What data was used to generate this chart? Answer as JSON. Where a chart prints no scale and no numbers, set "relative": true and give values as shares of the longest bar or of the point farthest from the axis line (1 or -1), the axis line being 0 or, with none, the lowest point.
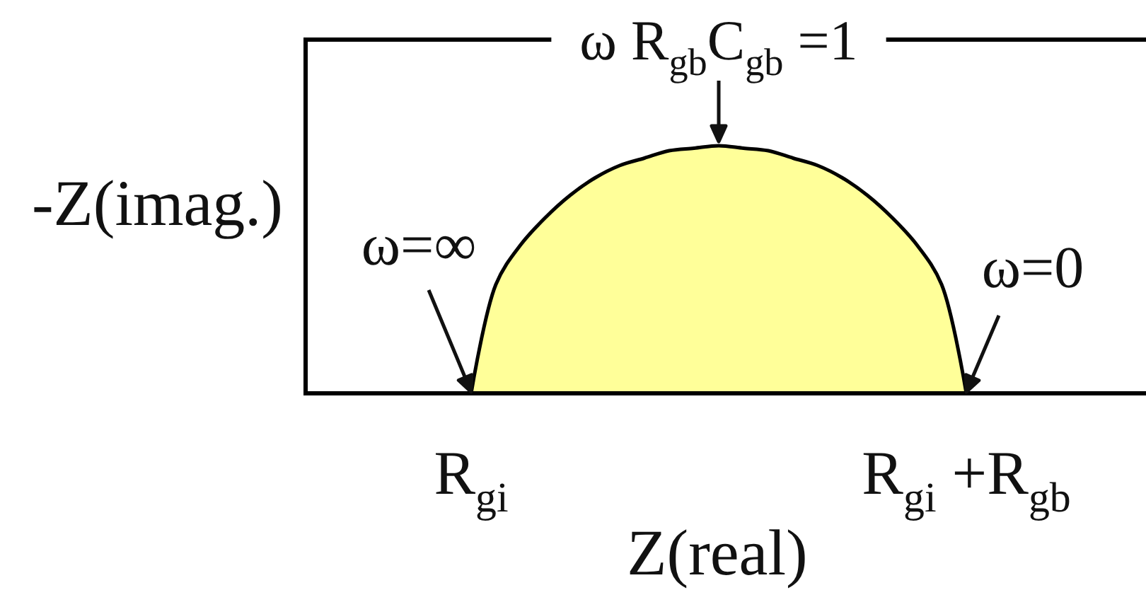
{
  "chart_data": {
    "type": "area",
    "relative": true,
    "xlabel": "Z(real)",
    "ylabel": "-Z(imag.)",
    "categories": [
      "R$_{gi}$",
      null,
      null,
      null,
      null,
      null,
      null,
      null,
      null,
      null,
      null,
      null,
      null,
      null,
      null,
      null,
      null,
      null,
      null,
      null,
      "R$_{gi}$ +R$_{gb}$"
    ],
    "values": [
      0,
      0.44,
      0.6,
      0.71,
      0.8,
      0.87,
      0.92,
      0.95,
      0.98,
      0.99,
      1,
      0.99,
      0.98,
      0.95,
      0.92,
      0.87,
      0.8,
      0.71,
      0.6,
      0.44,
      0
    ],
    "color": "#ffff99",
    "annotations": [
      {
        "text": "ω R$_{gb}$C$_{gb}$ =1",
        "y": 1
      },
      {
        "text": "ω=∞",
        "x": "R$_{gi}$",
        "y": 0
      },
      {
        "text": "ω=0",
        "x": "R$_{gi}$ +R$_{gb}$",
        "y": 0
      }
    ]
  }
}
